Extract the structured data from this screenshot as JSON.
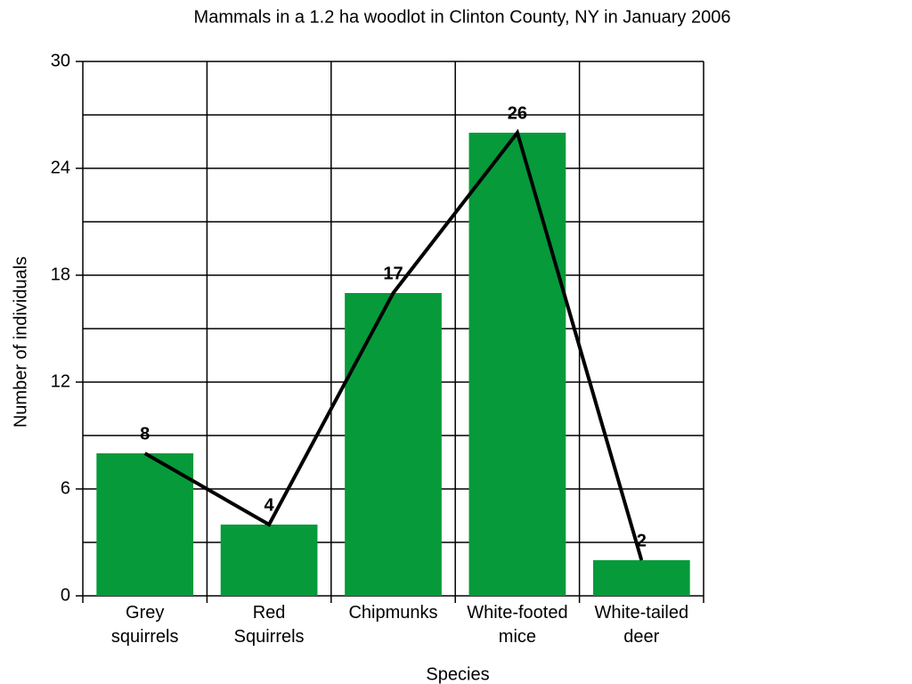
{
  "chart_data": {
    "type": "bar",
    "title": "Mammals in a 1.2 ha woodlot in Clinton County, NY in January 2006",
    "x_label": "Species",
    "y_label": "Number of individuals",
    "categories": [
      [
        "Grey",
        "squirrels"
      ],
      [
        "Red",
        "Squirrels"
      ],
      [
        "Chipmunks"
      ],
      [
        "White-footed",
        "mice"
      ],
      [
        "White-tailed",
        "deer"
      ]
    ],
    "values": [
      8,
      4,
      17,
      26,
      2
    ],
    "color": "#069a3a",
    "line_overlay": true,
    "line_color": "#000000",
    "ylim": [
      0,
      30
    ],
    "yticks": [
      0,
      6,
      12,
      18,
      24,
      30
    ],
    "minor_yticks": [
      3,
      9,
      15,
      21,
      27
    ],
    "grid": true
  }
}
